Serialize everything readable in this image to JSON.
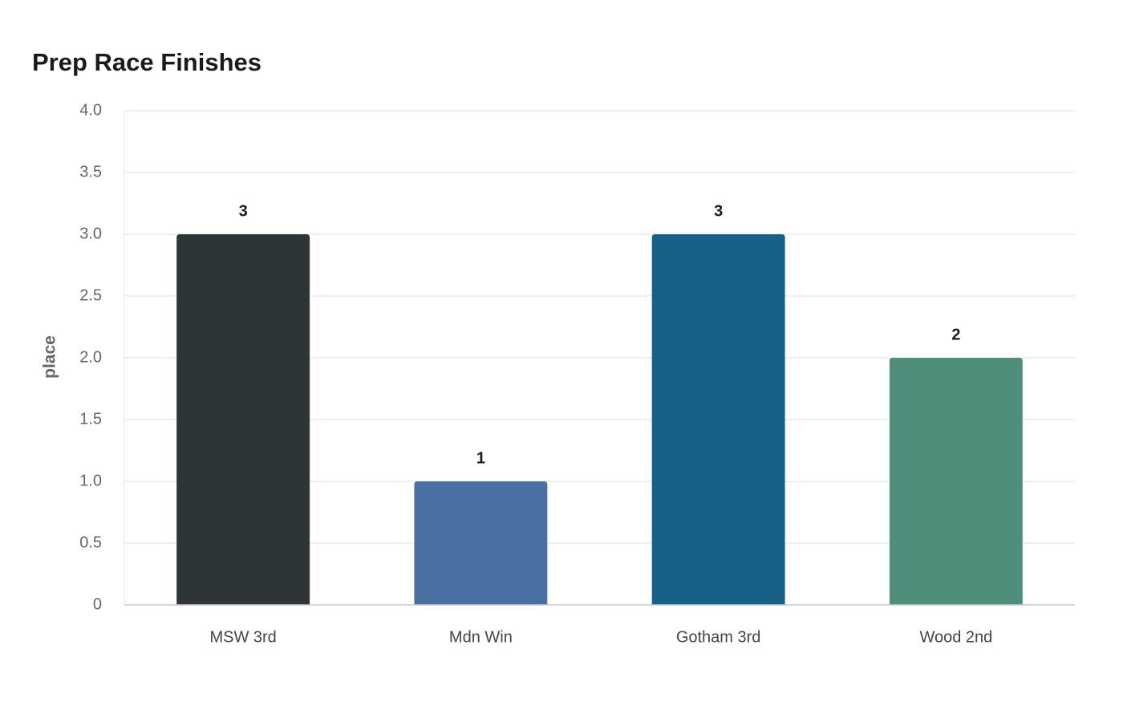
{
  "chart_data": {
    "type": "bar",
    "title": "Prep Race Finishes",
    "y_label": "place",
    "categories": [
      "MSW 3rd",
      "Mdn Win",
      "Gotham 3rd",
      "Wood 2nd"
    ],
    "values": [
      3,
      1,
      3,
      2
    ],
    "colors": [
      "#2e3538",
      "#4a6fa1",
      "#176087",
      "#4f8e7c"
    ],
    "ylim": [
      0,
      4
    ],
    "yticks": [
      0,
      0.5,
      {
        "value": 1,
        "label": "1.0"
      },
      1.5,
      {
        "value": 2,
        "label": "2.0"
      },
      2.5,
      {
        "value": 3,
        "label": "3.0"
      },
      3.5,
      {
        "value": 4,
        "label": "4.0"
      }
    ],
    "grid": true
  }
}
